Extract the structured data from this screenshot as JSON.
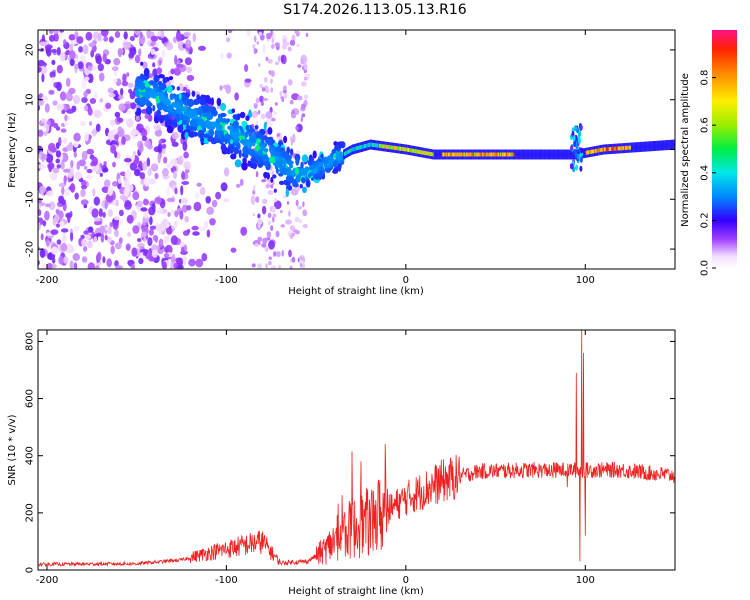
{
  "title": "S174.2026.113.05.13.R16",
  "chart_data": [
    {
      "type": "heatmap",
      "name": "spectrogram",
      "xlabel": "Height of straight line (km)",
      "ylabel": "Frequency (Hz)",
      "xlim": [
        -205,
        150
      ],
      "ylim": [
        -24,
        24
      ],
      "xticks": [
        -200,
        -100,
        0,
        100
      ],
      "yticks": [
        -20,
        -10,
        0,
        10,
        20
      ],
      "colorbar": {
        "label": "Normalized spectral amplitude",
        "range": [
          0,
          1
        ],
        "ticks": [
          "0.0",
          "0.2",
          "0.4",
          "0.6",
          "0.8"
        ],
        "tick_values": [
          0.0,
          0.2,
          0.4,
          0.6,
          0.8
        ]
      },
      "ridge": [
        {
          "x": -205,
          "y": 16
        },
        {
          "x": -140,
          "y": 11
        },
        {
          "x": -120,
          "y": 7
        },
        {
          "x": -100,
          "y": 4
        },
        {
          "x": -80,
          "y": 0
        },
        {
          "x": -60,
          "y": -5
        },
        {
          "x": -50,
          "y": -4
        },
        {
          "x": -40,
          "y": -2
        },
        {
          "x": -30,
          "y": 0
        },
        {
          "x": -20,
          "y": 1
        },
        {
          "x": 0,
          "y": 0
        },
        {
          "x": 15,
          "y": -1
        },
        {
          "x": 60,
          "y": -1
        },
        {
          "x": 95,
          "y": -1
        },
        {
          "x": 110,
          "y": 0
        },
        {
          "x": 150,
          "y": 1
        }
      ],
      "peak_band": [
        {
          "x": 20,
          "x2": 60,
          "y": -1,
          "amp": 0.9
        },
        {
          "x": 100,
          "x2": 125,
          "y": 0,
          "amp": 0.95
        },
        {
          "x": -20,
          "x2": 15,
          "y": 0,
          "amp": 0.75
        }
      ]
    },
    {
      "type": "line",
      "name": "snr",
      "xlabel": "Height of straight line (km)",
      "ylabel": "SNR (10 * v/v)",
      "xlim": [
        -205,
        150
      ],
      "ylim": [
        0,
        840
      ],
      "xticks": [
        -200,
        -100,
        0,
        100
      ],
      "yticks": [
        0,
        200,
        400,
        600,
        800
      ],
      "color": "#ee2222",
      "trend": [
        {
          "x": -205,
          "y": 20
        },
        {
          "x": -150,
          "y": 22
        },
        {
          "x": -125,
          "y": 35
        },
        {
          "x": -110,
          "y": 60
        },
        {
          "x": -95,
          "y": 80
        },
        {
          "x": -80,
          "y": 100
        },
        {
          "x": -70,
          "y": 25
        },
        {
          "x": -55,
          "y": 30
        },
        {
          "x": -45,
          "y": 70
        },
        {
          "x": -35,
          "y": 130
        },
        {
          "x": -20,
          "y": 170
        },
        {
          "x": -10,
          "y": 210
        },
        {
          "x": 0,
          "y": 250
        },
        {
          "x": 20,
          "y": 310
        },
        {
          "x": 40,
          "y": 345
        },
        {
          "x": 70,
          "y": 350
        },
        {
          "x": 95,
          "y": 350
        },
        {
          "x": 120,
          "y": 350
        },
        {
          "x": 150,
          "y": 330
        }
      ],
      "spikes": [
        {
          "x": -30,
          "y": 415
        },
        {
          "x": -25,
          "y": 380
        },
        {
          "x": -15,
          "y": 300
        },
        {
          "x": 90,
          "y": 290
        },
        {
          "x": 95,
          "y": 690
        },
        {
          "x": 97,
          "y": 30
        },
        {
          "x": 98,
          "y": 840
        },
        {
          "x": 99,
          "y": 760
        },
        {
          "x": 100,
          "y": 120
        }
      ]
    }
  ]
}
